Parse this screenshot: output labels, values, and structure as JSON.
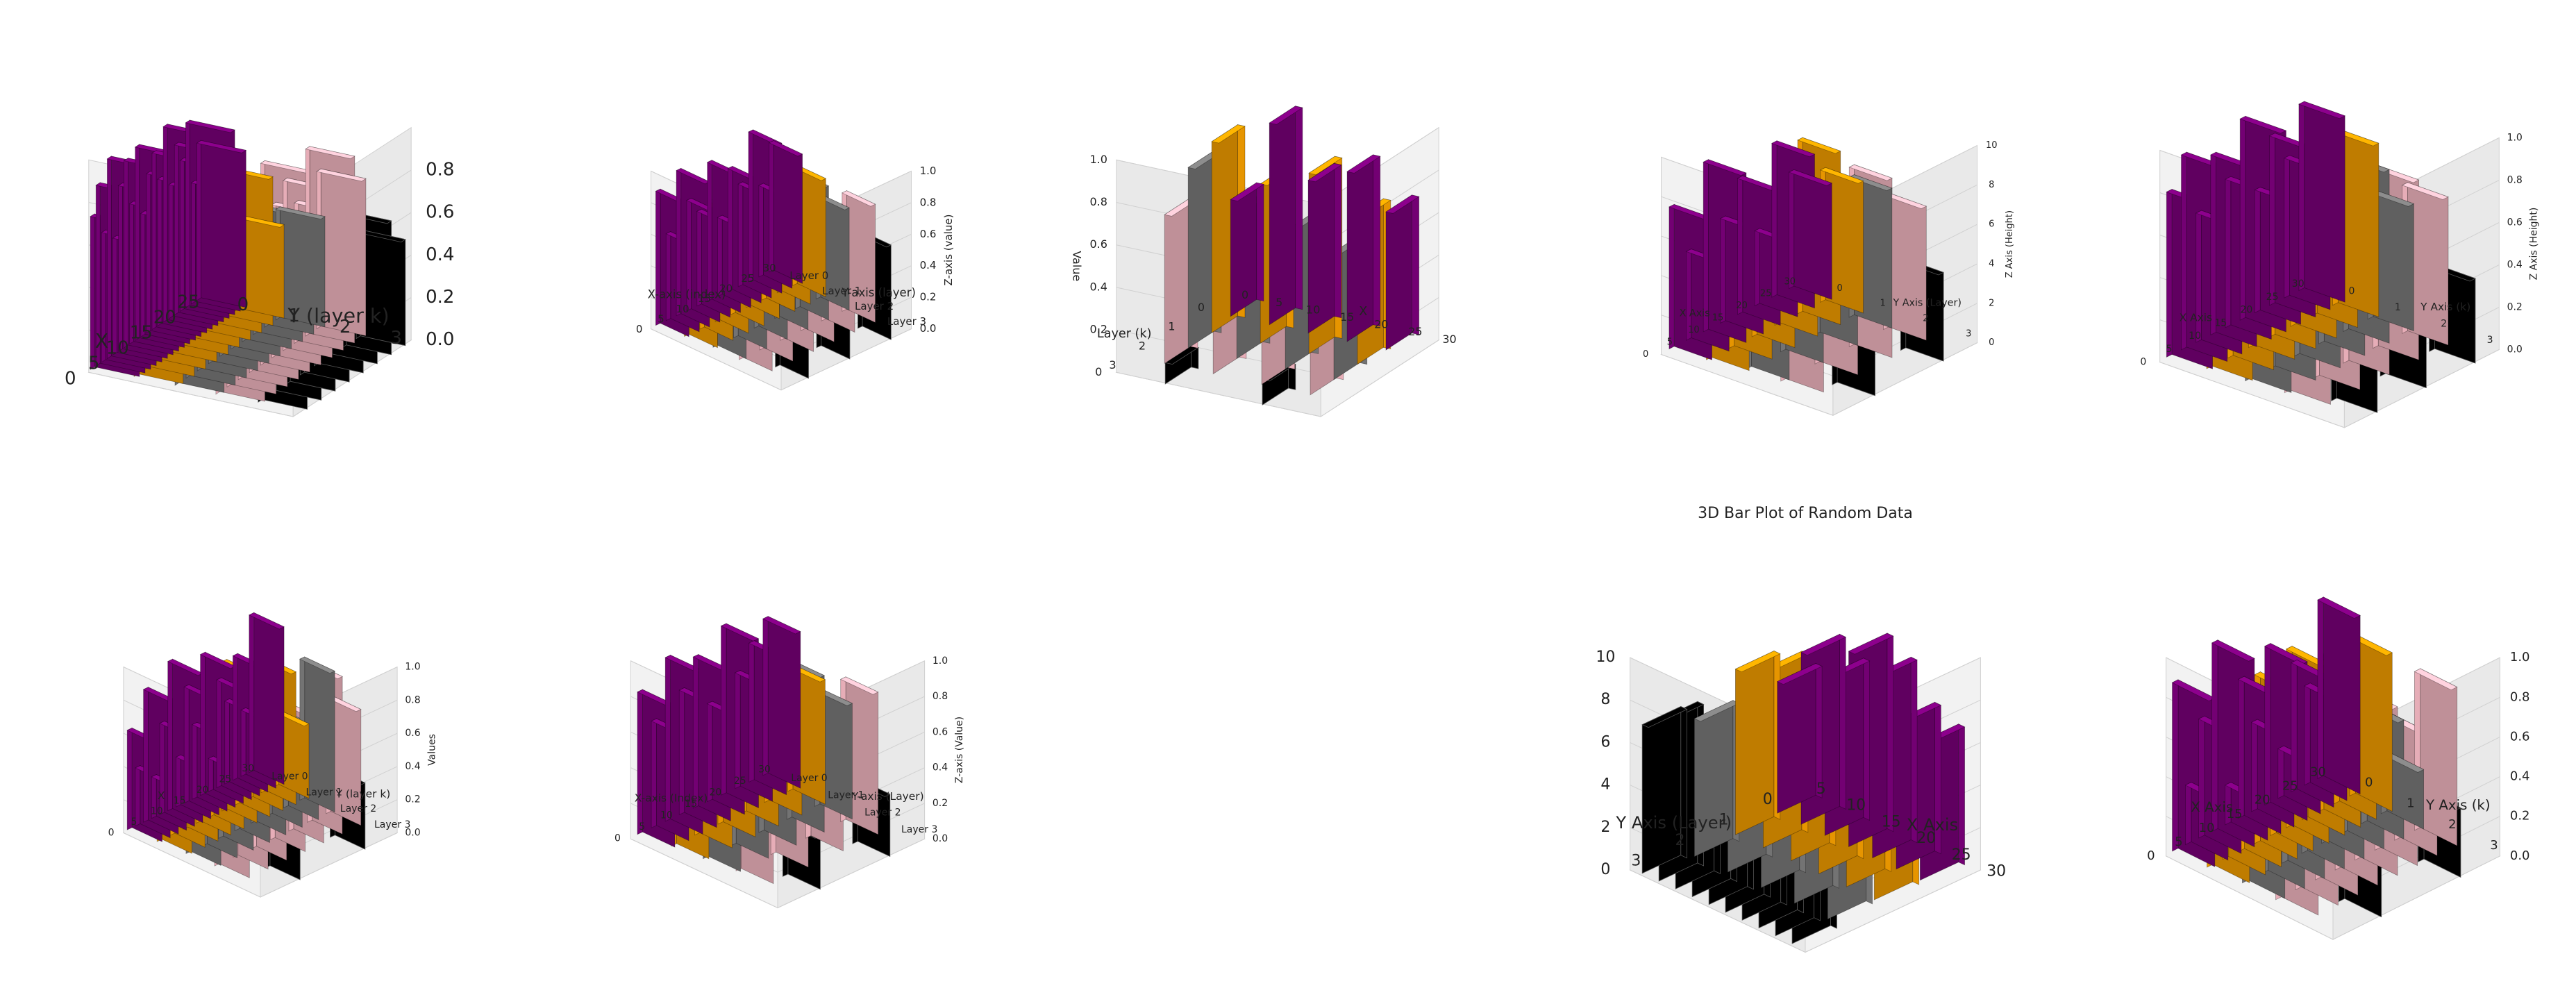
{
  "colors": {
    "purple": "#800080",
    "orange": "#ffa500",
    "gray": "#808080",
    "pink": "#ffc0cb",
    "black": "#000000"
  },
  "chart_data": [
    {
      "type": "bar3d",
      "xlabel": "X",
      "ylabel": "Y (layer k)",
      "zlabel": "",
      "xticks": [
        "0",
        "5",
        "10",
        "15",
        "20",
        "25"
      ],
      "yticks": [
        "0",
        "1",
        "2",
        "3"
      ],
      "zticks": [
        "0.0",
        "0.2",
        "0.4",
        "0.6",
        "0.8"
      ],
      "zlim": [
        0,
        1
      ],
      "grid": true,
      "series": [
        {
          "color": "purple",
          "values": [
            0.72,
            0.85,
            0.61,
            0.94,
            0.55,
            0.78,
            0.88,
            0.66,
            0.91,
            0.58,
            0.75,
            0.83,
            0.69,
            0.92,
            0.63,
            0.8,
            0.71,
            0.87,
            0.57,
            0.74
          ]
        },
        {
          "color": "orange",
          "values": [
            0.45,
            0.6,
            0.52,
            0.68,
            0.4,
            0.55,
            0.63,
            0.48,
            0.7,
            0.44
          ]
        },
        {
          "color": "gray",
          "values": [
            0.5,
            0.58,
            0.46,
            0.62,
            0.41,
            0.55,
            0.49,
            0.6,
            0.44,
            0.52
          ]
        },
        {
          "color": "pink",
          "values": [
            0.9,
            0.76,
            0.84,
            0.69,
            0.95,
            0.72,
            0.8,
            0.66,
            0.88,
            0.74
          ]
        },
        {
          "color": "black",
          "values": [
            0.55,
            0.49,
            0.61,
            0.52,
            0.58,
            0.46,
            0.63,
            0.5
          ]
        }
      ]
    },
    {
      "type": "bar3d",
      "xlabel": "X-axis (index)",
      "ylabel": "Y-axis (layer)",
      "zlabel": "Z-axis (value)",
      "xticks": [
        "0",
        "5",
        "10",
        "15",
        "20",
        "25",
        "30"
      ],
      "yticks": [
        "Layer 0",
        "Layer 1",
        "Layer 2",
        "Layer 3"
      ],
      "zticks": [
        "0.0",
        "0.2",
        "0.4",
        "0.6",
        "0.8",
        "1.0"
      ],
      "zlim": [
        0,
        1
      ],
      "grid": true,
      "series": [
        {
          "color": "purple",
          "values": [
            0.85,
            0.55,
            0.92,
            0.7,
            0.6,
            0.88,
            0.5,
            0.78,
            0.65,
            0.95,
            0.58,
            0.82
          ]
        },
        {
          "color": "orange",
          "values": [
            0.9,
            0.6,
            0.8,
            0.7,
            0.65,
            0.85,
            0.55,
            0.75
          ]
        },
        {
          "color": "gray",
          "values": [
            0.95,
            0.7,
            0.8,
            0.6,
            0.85,
            0.65
          ]
        },
        {
          "color": "pink",
          "values": [
            0.85,
            0.9,
            0.7,
            0.8,
            0.6,
            0.75
          ]
        },
        {
          "color": "black",
          "values": [
            0.45,
            0.52,
            0.6
          ]
        }
      ]
    },
    {
      "type": "bar3d",
      "xlabel": "X",
      "ylabel": "Layer (k)",
      "zlabel": "Value",
      "xticks": [
        "0",
        "5",
        "10",
        "15",
        "20",
        "25",
        "30"
      ],
      "yticks": [
        "0",
        "1",
        "2",
        "3"
      ],
      "zticks": [
        "0",
        "0.2",
        "0.4",
        "0.6",
        "0.8",
        "1.0"
      ],
      "zlim": [
        0,
        1
      ],
      "grid": true,
      "series": [
        {
          "color": "purple",
          "values": [
            0.55,
            0.95,
            0.72,
            0.8,
            0.65
          ]
        },
        {
          "color": "orange",
          "values": [
            0.9,
            0.75,
            0.85,
            0.7
          ]
        },
        {
          "color": "gray",
          "values": [
            0.85,
            0.7,
            0.65,
            0.6
          ]
        },
        {
          "color": "pink",
          "values": [
            0.7,
            0.65,
            0.62,
            0.6
          ]
        },
        {
          "color": "black",
          "values": [
            0.1,
            0.12
          ]
        }
      ]
    },
    {
      "type": "bar3d",
      "xlabel": "X Axis",
      "ylabel": "Y Axis (Layer)",
      "zlabel": "Z Axis (Height)",
      "xticks": [
        "0",
        "5",
        "10",
        "15",
        "20",
        "25",
        "30"
      ],
      "yticks": [
        "0",
        "1",
        "2",
        "3"
      ],
      "zticks": [
        "0",
        "2",
        "4",
        "6",
        "8",
        "10"
      ],
      "zlim": [
        0,
        10
      ],
      "grid": true,
      "series": [
        {
          "color": "purple",
          "values": [
            7.2,
            4.5,
            8.6,
            5.3,
            6.9,
            3.8,
            7.8,
            5.9
          ]
        },
        {
          "color": "orange",
          "values": [
            8.1,
            6.2,
            7.4,
            5.5,
            8.8,
            6.7
          ]
        },
        {
          "color": "gray",
          "values": [
            9.2,
            6.5,
            8.3,
            7.1
          ]
        },
        {
          "color": "pink",
          "values": [
            8.6,
            7.3,
            9.1,
            6.8
          ]
        },
        {
          "color": "black",
          "values": [
            3.8,
            4.5
          ]
        }
      ]
    },
    {
      "type": "bar3d",
      "xlabel": "X Axis",
      "ylabel": "Y Axis (k)",
      "zlabel": "Z Axis (Height)",
      "xticks": [
        "0",
        "5",
        "10",
        "15",
        "20",
        "25",
        "30"
      ],
      "yticks": [
        "0",
        "1",
        "2",
        "3"
      ],
      "zticks": [
        "0.0",
        "0.2",
        "0.4",
        "0.6",
        "0.8",
        "1.0"
      ],
      "zlim": [
        0,
        1
      ],
      "grid": true,
      "series": [
        {
          "color": "purple",
          "values": [
            0.78,
            0.92,
            0.61,
            0.85,
            0.7,
            0.95,
            0.58,
            0.8,
            0.66,
            0.88
          ]
        },
        {
          "color": "orange",
          "values": [
            0.85,
            0.7,
            0.9,
            0.62,
            0.78,
            0.55,
            0.82
          ]
        },
        {
          "color": "gray",
          "values": [
            0.9,
            0.75,
            0.95,
            0.68,
            0.82,
            0.6
          ]
        },
        {
          "color": "pink",
          "values": [
            0.88,
            0.95,
            0.72,
            0.85,
            0.7
          ]
        },
        {
          "color": "black",
          "values": [
            0.35,
            0.3,
            0.4
          ]
        }
      ]
    },
    {
      "type": "bar3d",
      "xlabel": "X",
      "ylabel": "Y (layer k)",
      "zlabel": "Values",
      "xticks": [
        "0",
        "5",
        "10",
        "15",
        "20",
        "25",
        "30"
      ],
      "yticks": [
        "Layer 0",
        "Layer 1",
        "Layer 2",
        "Layer 3"
      ],
      "zticks": [
        "0.0",
        "0.2",
        "0.4",
        "0.6",
        "0.8",
        "1.0"
      ],
      "zlim": [
        0,
        1
      ],
      "grid": true,
      "series": [
        {
          "color": "purple",
          "values": [
            0.6,
            0.35,
            0.8,
            0.25,
            0.55,
            0.9,
            0.3,
            0.7,
            0.45,
            0.85,
            0.2,
            0.65,
            0.5,
            0.75,
            0.4,
            0.95
          ]
        },
        {
          "color": "orange",
          "values": [
            0.7,
            0.5,
            0.85,
            0.4,
            0.65,
            0.9,
            0.35,
            0.6,
            0.8,
            0.45
          ]
        },
        {
          "color": "gray",
          "values": [
            0.8,
            0.45,
            0.7,
            0.95,
            0.5,
            0.65,
            0.35,
            0.85
          ]
        },
        {
          "color": "pink",
          "values": [
            0.9,
            0.6,
            0.75,
            0.85,
            0.55,
            0.95,
            0.7
          ]
        },
        {
          "color": "black",
          "values": [
            0.3,
            0.4
          ]
        }
      ]
    },
    {
      "type": "bar3d",
      "xlabel": "X-axis (Index)",
      "ylabel": "Y-axis (Layer)",
      "zlabel": "Z-axis (Value)",
      "xticks": [
        "0",
        "5",
        "10",
        "15",
        "20",
        "25",
        "30"
      ],
      "yticks": [
        "Layer 0",
        "Layer 1",
        "Layer 2",
        "Layer 3"
      ],
      "zticks": [
        "0.0",
        "0.2",
        "0.4",
        "0.6",
        "0.8",
        "1.0"
      ],
      "zlim": [
        0,
        1
      ],
      "grid": true,
      "series": [
        {
          "color": "purple",
          "values": [
            0.8,
            0.6,
            0.92,
            0.7,
            0.85,
            0.55,
            0.95,
            0.65,
            0.78,
            0.88
          ]
        },
        {
          "color": "orange",
          "values": [
            0.9,
            0.75,
            0.85,
            0.6,
            0.8,
            0.7
          ]
        },
        {
          "color": "gray",
          "values": [
            0.95,
            0.8,
            0.7,
            0.88,
            0.65
          ]
        },
        {
          "color": "pink",
          "values": [
            0.9,
            0.85,
            0.75,
            0.8
          ]
        },
        {
          "color": "black",
          "values": [
            0.3,
            0.35
          ]
        }
      ]
    },
    {
      "type": "bar3d",
      "title": "3D Bar Plot of Random Data",
      "xlabel": "X Axis",
      "ylabel": "Y Axis (Layer)",
      "zlabel": "",
      "xticks": [
        "5",
        "10",
        "15",
        "20",
        "25",
        "30"
      ],
      "yticks": [
        "0",
        "1",
        "2",
        "3"
      ],
      "zticks": [
        "0",
        "2",
        "4",
        "6",
        "8",
        "10"
      ],
      "zlim": [
        0,
        10
      ],
      "grid": true,
      "series": [
        {
          "color": "purple",
          "values": [
            6.2,
            8.1,
            7.5,
            9.2,
            8.6,
            7.0,
            6.5
          ]
        },
        {
          "color": "orange",
          "values": [
            7.8,
            8.4,
            6.9,
            8.0,
            7.2,
            6.6
          ]
        },
        {
          "color": "gray",
          "values": [
            6.5,
            7.4,
            6.8,
            7.0,
            6.0
          ]
        },
        {
          "color": "black",
          "values": [
            7.0,
            7.6,
            6.4,
            7.2,
            6.9,
            7.5,
            6.6,
            7.3,
            7.1,
            6.8
          ]
        }
      ]
    },
    {
      "type": "bar3d",
      "xlabel": "X Axis",
      "ylabel": "Y Axis (k)",
      "zlabel": "",
      "xticks": [
        "0",
        "5",
        "10",
        "15",
        "20",
        "25",
        "30"
      ],
      "yticks": [
        "0",
        "1",
        "2",
        "3"
      ],
      "zticks": [
        "0.0",
        "0.2",
        "0.4",
        "0.6",
        "0.8",
        "1.0"
      ],
      "zlim": [
        0,
        1
      ],
      "grid": true,
      "series": [
        {
          "color": "purple",
          "values": [
            0.85,
            0.3,
            0.6,
            0.95,
            0.2,
            0.7,
            0.45,
            0.8,
            0.25,
            0.65,
            0.5,
            0.9
          ]
        },
        {
          "color": "orange",
          "values": [
            0.7,
            0.95,
            0.4,
            0.85,
            0.55,
            0.9,
            0.35,
            0.75,
            0.6,
            0.8
          ]
        },
        {
          "color": "gray",
          "values": [
            0.5,
            0.85,
            0.35,
            0.7,
            0.95,
            0.45,
            0.6,
            0.3
          ]
        },
        {
          "color": "pink",
          "values": [
            0.9,
            0.65,
            0.95,
            0.55,
            0.85,
            0.7,
            0.6,
            0.8
          ]
        },
        {
          "color": "black",
          "values": [
            0.4,
            0.35
          ]
        }
      ]
    }
  ]
}
